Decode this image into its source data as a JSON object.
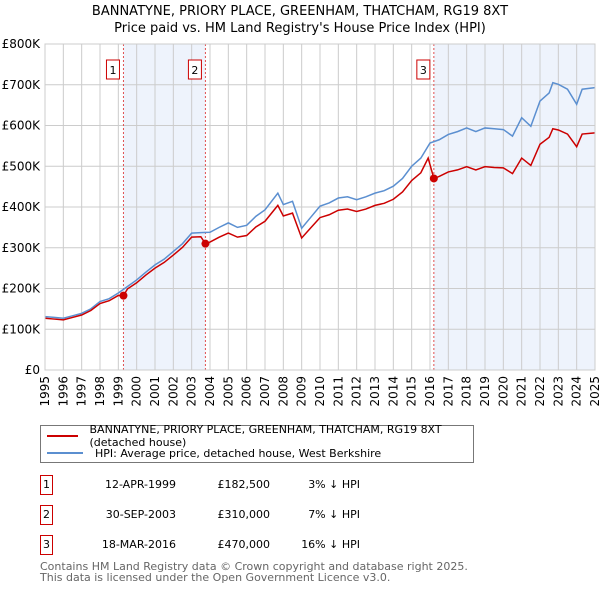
{
  "chart_data": {
    "type": "line",
    "title": "BANNATYNE, PRIORY PLACE, GREENHAM, THATCHAM, RG19 8XT",
    "subtitle": "Price paid vs. HM Land Registry's House Price Index (HPI)",
    "xlim": [
      1995,
      2025
    ],
    "ylim": [
      0,
      800000
    ],
    "x_ticks": [
      "1995",
      "1996",
      "1997",
      "1998",
      "1999",
      "2000",
      "2001",
      "2002",
      "2003",
      "2004",
      "2005",
      "2006",
      "2007",
      "2008",
      "2009",
      "2010",
      "2011",
      "2012",
      "2013",
      "2014",
      "2015",
      "2016",
      "2017",
      "2018",
      "2019",
      "2020",
      "2021",
      "2022",
      "2023",
      "2024",
      "2025"
    ],
    "y_ticks": [
      {
        "v": 0,
        "label": "£0"
      },
      {
        "v": 100000,
        "label": "£100K"
      },
      {
        "v": 200000,
        "label": "£200K"
      },
      {
        "v": 300000,
        "label": "£300K"
      },
      {
        "v": 400000,
        "label": "£400K"
      },
      {
        "v": 500000,
        "label": "£500K"
      },
      {
        "v": 600000,
        "label": "£600K"
      },
      {
        "v": 700000,
        "label": "£700K"
      },
      {
        "v": 800000,
        "label": "£800K"
      }
    ],
    "grid": true,
    "series": [
      {
        "name": "BANNATYNE, PRIORY PLACE, GREENHAM, THATCHAM, RG19 8XT (detached house)",
        "color": "#cc0000",
        "unit": "£K",
        "points": [
          [
            1995,
            127
          ],
          [
            1995.5,
            125
          ],
          [
            1996,
            123
          ],
          [
            1996.5,
            129
          ],
          [
            1997,
            135
          ],
          [
            1997.5,
            146
          ],
          [
            1998,
            163
          ],
          [
            1998.5,
            170
          ],
          [
            1999,
            183
          ],
          [
            1999.28,
            182.5
          ],
          [
            1999.5,
            199
          ],
          [
            2000,
            214
          ],
          [
            2000.5,
            233
          ],
          [
            2001,
            250
          ],
          [
            2001.5,
            264
          ],
          [
            2002,
            282
          ],
          [
            2002.5,
            301
          ],
          [
            2003,
            326
          ],
          [
            2003.5,
            327
          ],
          [
            2003.75,
            310
          ],
          [
            2004,
            314
          ],
          [
            2004.5,
            326
          ],
          [
            2005,
            336
          ],
          [
            2005.5,
            326
          ],
          [
            2006,
            330
          ],
          [
            2006.5,
            351
          ],
          [
            2007,
            365
          ],
          [
            2007.7,
            404
          ],
          [
            2008,
            378
          ],
          [
            2008.5,
            385
          ],
          [
            2009,
            324
          ],
          [
            2009.5,
            349
          ],
          [
            2010,
            374
          ],
          [
            2010.5,
            381
          ],
          [
            2011,
            392
          ],
          [
            2011.5,
            395
          ],
          [
            2012,
            389
          ],
          [
            2012.5,
            395
          ],
          [
            2013,
            404
          ],
          [
            2013.5,
            409
          ],
          [
            2014,
            419
          ],
          [
            2014.5,
            437
          ],
          [
            2015,
            465
          ],
          [
            2015.5,
            484
          ],
          [
            2015.9,
            520
          ],
          [
            2016.21,
            470
          ],
          [
            2016.5,
            475
          ],
          [
            2017,
            486
          ],
          [
            2017.5,
            491
          ],
          [
            2018,
            499
          ],
          [
            2018.5,
            491
          ],
          [
            2019,
            499
          ],
          [
            2019.5,
            497
          ],
          [
            2020,
            496
          ],
          [
            2020.5,
            482
          ],
          [
            2021,
            520
          ],
          [
            2021.5,
            502
          ],
          [
            2022,
            554
          ],
          [
            2022.5,
            571
          ],
          [
            2022.7,
            592
          ],
          [
            2023,
            589
          ],
          [
            2023.5,
            579
          ],
          [
            2024,
            548
          ],
          [
            2024.3,
            579
          ],
          [
            2025,
            582
          ]
        ]
      },
      {
        "name": "HPI: Average price, detached house, West Berkshire",
        "color": "#5b8fd0",
        "unit": "£K",
        "points": [
          [
            1995,
            131
          ],
          [
            1995.5,
            129
          ],
          [
            1996,
            127
          ],
          [
            1996.5,
            133
          ],
          [
            1997,
            139
          ],
          [
            1997.5,
            150
          ],
          [
            1998,
            168
          ],
          [
            1998.5,
            175
          ],
          [
            1999,
            189
          ],
          [
            1999.5,
            205
          ],
          [
            2000,
            221
          ],
          [
            2000.5,
            240
          ],
          [
            2001,
            258
          ],
          [
            2001.5,
            272
          ],
          [
            2002,
            291
          ],
          [
            2002.5,
            310
          ],
          [
            2003,
            336
          ],
          [
            2003.5,
            337
          ],
          [
            2004,
            338
          ],
          [
            2004.5,
            350
          ],
          [
            2005,
            361
          ],
          [
            2005.5,
            350
          ],
          [
            2006,
            355
          ],
          [
            2006.5,
            377
          ],
          [
            2007,
            393
          ],
          [
            2007.7,
            434
          ],
          [
            2008,
            406
          ],
          [
            2008.5,
            414
          ],
          [
            2009,
            348
          ],
          [
            2009.5,
            375
          ],
          [
            2010,
            402
          ],
          [
            2010.5,
            410
          ],
          [
            2011,
            422
          ],
          [
            2011.5,
            425
          ],
          [
            2012,
            418
          ],
          [
            2012.5,
            425
          ],
          [
            2013,
            434
          ],
          [
            2013.5,
            440
          ],
          [
            2014,
            451
          ],
          [
            2014.5,
            470
          ],
          [
            2015,
            500
          ],
          [
            2015.5,
            520
          ],
          [
            2016,
            557
          ],
          [
            2016.5,
            565
          ],
          [
            2017,
            578
          ],
          [
            2017.5,
            585
          ],
          [
            2018,
            594
          ],
          [
            2018.5,
            585
          ],
          [
            2019,
            594
          ],
          [
            2019.5,
            592
          ],
          [
            2020,
            590
          ],
          [
            2020.5,
            574
          ],
          [
            2021,
            619
          ],
          [
            2021.5,
            598
          ],
          [
            2022,
            660
          ],
          [
            2022.5,
            680
          ],
          [
            2022.7,
            705
          ],
          [
            2023,
            701
          ],
          [
            2023.5,
            689
          ],
          [
            2024,
            652
          ],
          [
            2024.3,
            689
          ],
          [
            2025,
            693
          ]
        ]
      }
    ],
    "sales": [
      {
        "label": "1",
        "x": 1999.28,
        "value": 182500
      },
      {
        "label": "2",
        "x": 2003.75,
        "value": 310000
      },
      {
        "label": "3",
        "x": 2016.21,
        "value": 470000
      }
    ],
    "shaded_ranges": [
      [
        1999.28,
        2003.75
      ],
      [
        2016.21,
        2025
      ]
    ],
    "legend_placement": "below"
  },
  "legend": {
    "property": "BANNATYNE, PRIORY PLACE, GREENHAM, THATCHAM, RG19 8XT (detached house)",
    "hpi": "HPI: Average price, detached house, West Berkshire"
  },
  "transactions": [
    {
      "num": "1",
      "date": "12-APR-1999",
      "price": "£182,500",
      "hpi": "3% ↓ HPI"
    },
    {
      "num": "2",
      "date": "30-SEP-2003",
      "price": "£310,000",
      "hpi": "7% ↓ HPI"
    },
    {
      "num": "3",
      "date": "18-MAR-2016",
      "price": "£470,000",
      "hpi": "16% ↓ HPI"
    }
  ],
  "footer": {
    "line1": "Contains HM Land Registry data © Crown copyright and database right 2025.",
    "line2": "This data is licensed under the Open Government Licence v3.0."
  },
  "colors": {
    "property": "#cc0000",
    "hpi": "#5b8fd0",
    "shade": "#eef3fc",
    "grid": "#cccccc"
  }
}
